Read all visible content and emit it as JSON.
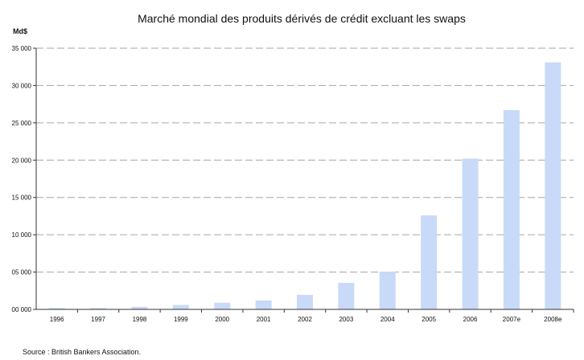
{
  "chart_data": {
    "type": "bar",
    "title": "Marché mondial des produits dérivés de crédit excluant les swaps",
    "unit_label": "Md$",
    "source": "Source : British Bankers Association.",
    "categories": [
      "1996",
      "1997",
      "1998",
      "1999",
      "2000",
      "2001",
      "2002",
      "2003",
      "2004",
      "2005",
      "2006",
      "2007e",
      "2008e"
    ],
    "values": [
      180,
      180,
      350,
      590,
      890,
      1190,
      1950,
      3550,
      5050,
      12600,
      20200,
      26700,
      33100
    ],
    "yticks": [
      0,
      5000,
      10000,
      15000,
      20000,
      25000,
      30000,
      35000
    ],
    "ytick_labels": [
      "00 000",
      "05 000",
      "10 000",
      "15 000",
      "20 000",
      "25 000",
      "30 000",
      "35 000"
    ],
    "ylim": [
      0,
      35000
    ],
    "grid": true,
    "colors": {
      "bar": "#c9daf8",
      "grid": "#a6a6a6",
      "axis": "#333333"
    }
  }
}
